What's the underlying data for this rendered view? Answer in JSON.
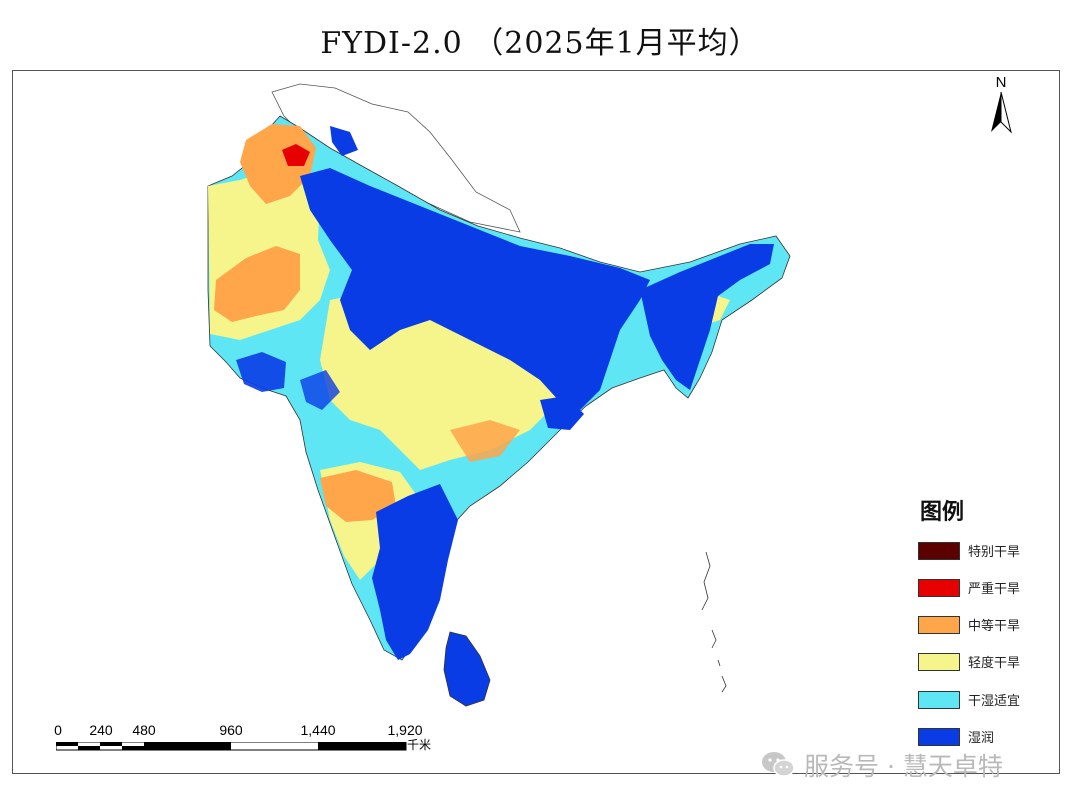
{
  "title": "FYDI-2.0  （2025年1月平均）",
  "north_arrow": {
    "label": "N"
  },
  "legend": {
    "title": "图例",
    "items": [
      {
        "label": "特别干旱",
        "color": "#5c0000"
      },
      {
        "label": "严重干旱",
        "color": "#e60000"
      },
      {
        "label": "中等干旱",
        "color": "#ffa54a"
      },
      {
        "label": "轻度干旱",
        "color": "#f5f58c"
      },
      {
        "label": "干湿适宜",
        "color": "#5ee6f5"
      },
      {
        "label": "湿润",
        "color": "#0a3ce6"
      }
    ]
  },
  "scale_bar": {
    "ticks": [
      "0",
      "240",
      "480",
      "960",
      "1,440",
      "1,920"
    ],
    "unit": "千米"
  },
  "watermark": {
    "text": "服务号 · 慧天卓特",
    "icon": "wechat-icon"
  }
}
